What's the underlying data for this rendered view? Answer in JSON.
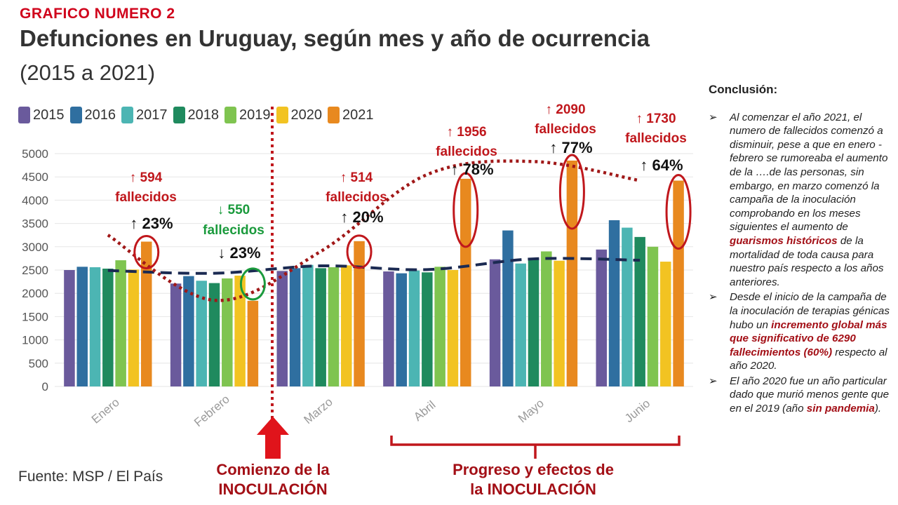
{
  "header": {
    "label": "GRAFICO NUMERO 2",
    "title": "Defunciones en Uruguay, según mes y año de ocurrencia",
    "subtitle": "(2015 a 2021)"
  },
  "source": "Fuente: MSP / El País",
  "chart_data": {
    "type": "bar",
    "categories": [
      "Enero",
      "Febrero",
      "Marzo",
      "Abril",
      "Mayo",
      "Junio"
    ],
    "series": [
      {
        "name": "2015",
        "color": "#6a5a9c",
        "values": [
          2500,
          2210,
          2480,
          2470,
          2730,
          2940
        ]
      },
      {
        "name": "2016",
        "color": "#2f6fa0",
        "values": [
          2570,
          2370,
          2540,
          2430,
          3350,
          3570
        ]
      },
      {
        "name": "2017",
        "color": "#4cb5b3",
        "values": [
          2560,
          2270,
          2610,
          2490,
          2640,
          3410
        ]
      },
      {
        "name": "2018",
        "color": "#1f8a5e",
        "values": [
          2530,
          2220,
          2540,
          2450,
          2730,
          3210
        ]
      },
      {
        "name": "2019",
        "color": "#7fc450",
        "values": [
          2710,
          2320,
          2560,
          2570,
          2900,
          3000
        ]
      },
      {
        "name": "2020",
        "color": "#f2c322",
        "values": [
          2510,
          2380,
          2600,
          2500,
          2700,
          2680
        ]
      },
      {
        "name": "2021",
        "color": "#e8891f",
        "values": [
          3110,
          1840,
          3120,
          4460,
          4850,
          4420
        ]
      }
    ],
    "ylim": [
      0,
      5000
    ],
    "yticks": [
      0,
      500,
      1000,
      1500,
      2000,
      2500,
      3000,
      3500,
      4000,
      4500,
      5000
    ],
    "grid": true,
    "legend_position": "top-left",
    "trend_lines": [
      {
        "name": "average-trend",
        "style": "dashed",
        "color": "#1b2a52",
        "values": [
          2490,
          2430,
          2590,
          2510,
          2740,
          2710
        ]
      },
      {
        "name": "2021-trend",
        "style": "dotted",
        "color": "#a01818",
        "values": [
          3250,
          1850,
          2900,
          4550,
          4830,
          4420
        ]
      }
    ],
    "annotations": [
      {
        "category": "Enero",
        "color": "#c0171c",
        "count": "↑ 594",
        "word": "fallecidos",
        "pct": "↑ 23%"
      },
      {
        "category": "Febrero",
        "color": "#1a9a3c",
        "count": "↓ 550",
        "word": "fallecidos",
        "pct": "↓ 23%"
      },
      {
        "category": "Marzo",
        "color": "#c0171c",
        "count": "↑ 514",
        "word": "fallecidos",
        "pct": "↑ 20%"
      },
      {
        "category": "Abril",
        "color": "#c0171c",
        "count": "↑ 1956",
        "word": "fallecidos",
        "pct": "↑ 78%"
      },
      {
        "category": "Mayo",
        "color": "#c0171c",
        "count": "↑ 2090",
        "word": "fallecidos",
        "pct": "↑ 77%"
      },
      {
        "category": "Junio",
        "color": "#c0171c",
        "count": "↑ 1730",
        "word": "fallecidos",
        "pct": "↑ 64%"
      }
    ],
    "markers": {
      "start_line1": "Comienzo de la",
      "start_line2": "INOCULACIÓN",
      "progress_line1": "Progreso y efectos de",
      "progress_line2": "la INOCULACIÓN"
    }
  },
  "conclusion": {
    "title": "Conclusión:",
    "marker": "➢",
    "items": [
      {
        "a": "Al comenzar el año 2021, el numero de fallecidos comenzó a disminuir, pese a que en enero - febrero se rumoreaba el aumento de la ….de las personas, sin embargo, en marzo comenzó la campaña de la inoculación comprobando en los meses siguientes el aumento de ",
        "hl": "guarismos históricos",
        "b": " de la mortalidad de toda causa para nuestro país respecto a los años anteriores."
      },
      {
        "a": "Desde el inicio de la campaña de la inoculación de terapias génicas hubo un ",
        "hl": "incremento global más que significativo de 6290 fallecimientos (60%)",
        "b": " respecto al año 2020."
      },
      {
        "a": "El año 2020 fue un año particular dado que murió menos gente que en el 2019 (año ",
        "hl": "sin pandemia",
        "b": ")."
      }
    ]
  }
}
